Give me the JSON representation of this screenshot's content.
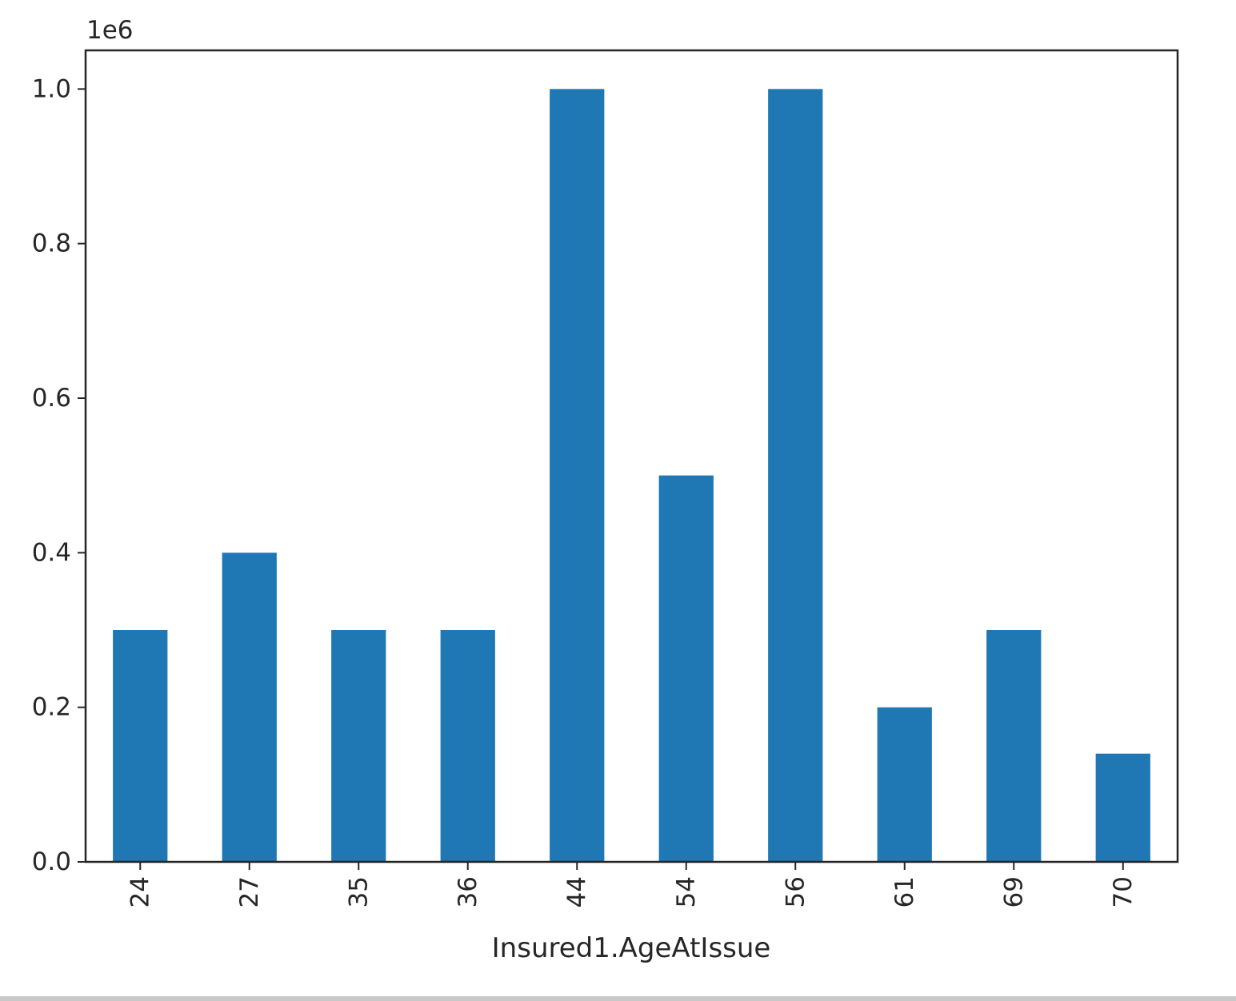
{
  "chart_data": {
    "type": "bar",
    "categories": [
      "24",
      "27",
      "35",
      "36",
      "44",
      "54",
      "56",
      "61",
      "69",
      "70"
    ],
    "values": [
      300000,
      400000,
      300000,
      300000,
      1000000,
      500000,
      1000000,
      200000,
      300000,
      140000
    ],
    "title": "",
    "xlabel": "Insured1.AgeAtIssue",
    "ylabel": "",
    "ylim": [
      0,
      1050000
    ],
    "yticks": [
      0,
      200000,
      400000,
      600000,
      800000,
      1000000
    ],
    "ytick_labels": [
      "0.0",
      "0.2",
      "0.4",
      "0.6",
      "0.8",
      "1.0"
    ],
    "offset_text": "1e6",
    "bar_color": "#1f77b4",
    "grid": false,
    "legend": "none"
  }
}
